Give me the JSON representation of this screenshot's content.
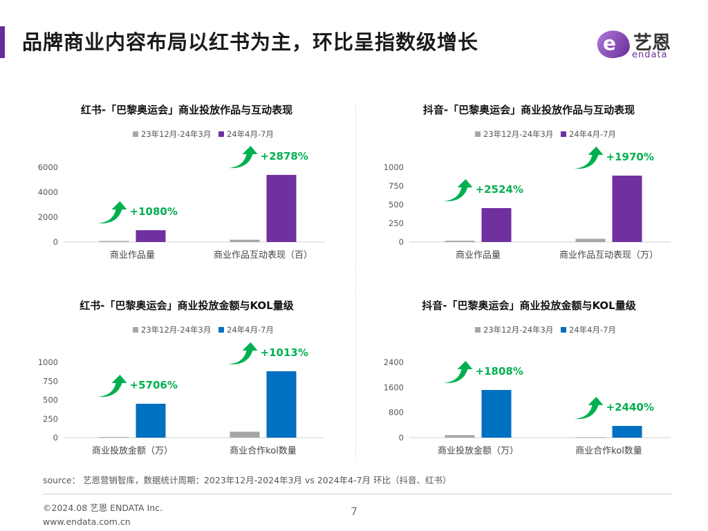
{
  "header": {
    "title": "品牌商业内容布局以红书为主，环比呈指数级增长",
    "accent_color": "#6a2c9a"
  },
  "logo": {
    "mark": "e",
    "cn": "艺恩",
    "en": "endata"
  },
  "chart_data": [
    {
      "type": "bar",
      "title": "红书-「巴黎奥运会」商业投放作品与互动表现",
      "categories": [
        "商业作品量",
        "商业作品互动表现（百）"
      ],
      "series": [
        {
          "name": "23年12月-24年3月",
          "color": "#a6a6a6",
          "values": [
            80,
            181
          ]
        },
        {
          "name": "24年4月-7月",
          "color": "#7030a0",
          "values": [
            944,
            5390
          ]
        }
      ],
      "annotations": [
        "+1080%",
        "+2878%"
      ],
      "yticks": [
        0,
        2000,
        4000,
        6000
      ],
      "ylim": [
        0,
        6000
      ],
      "legend": "top",
      "grid": false
    },
    {
      "type": "bar",
      "title": "抖音-「巴黎奥运会」商业投放作品与互动表现",
      "categories": [
        "商业作品量",
        "商业作品互动表现（万）"
      ],
      "series": [
        {
          "name": "23年12月-24年3月",
          "color": "#a6a6a6",
          "values": [
            17,
            43
          ]
        },
        {
          "name": "24年4月-7月",
          "color": "#7030a0",
          "values": [
            454,
            889
          ]
        }
      ],
      "annotations": [
        "+2524%",
        "+1970%"
      ],
      "yticks": [
        0,
        250,
        500,
        750,
        1000
      ],
      "ylim": [
        0,
        1000
      ],
      "legend": "top",
      "grid": false
    },
    {
      "type": "bar",
      "title": "红书-「巴黎奥运会」商业投放金额与KOL量级",
      "categories": [
        "商业投放金额（万）",
        "商业合作kol数量"
      ],
      "series": [
        {
          "name": "23年12月-24年3月",
          "color": "#a6a6a6",
          "values": [
            8,
            79
          ]
        },
        {
          "name": "24年4月-7月",
          "color": "#0070c0",
          "values": [
            450,
            881
          ]
        }
      ],
      "annotations": [
        "+5706%",
        "+1013%"
      ],
      "yticks": [
        0,
        250,
        500,
        750,
        1000
      ],
      "ylim": [
        0,
        1000
      ],
      "legend": "top",
      "grid": false
    },
    {
      "type": "bar",
      "title": "抖音-「巴黎奥运会」商业投放金额与KOL量级",
      "categories": [
        "商业投放金额（万）",
        "商业合作kol数量"
      ],
      "series": [
        {
          "name": "23年12月-24年3月",
          "color": "#a6a6a6",
          "values": [
            80,
            15
          ]
        },
        {
          "name": "24年4月-7月",
          "color": "#0070c0",
          "values": [
            1519,
            374
          ]
        }
      ],
      "annotations": [
        "+1808%",
        "+2440%"
      ],
      "yticks": [
        0,
        800,
        1600,
        2400
      ],
      "ylim": [
        0,
        2400
      ],
      "legend": "top",
      "grid": false
    }
  ],
  "annotation_color": "#00b050",
  "footer": {
    "source": "source： 艺恩营销智库，数据统计周期：2023年12月-2024年3月 vs 2024年4-7月 环比（抖音、红书）",
    "copyright": "©2024.08  艺恩 ENDATA Inc.",
    "website": "www.endata.com.cn",
    "page": "7"
  }
}
